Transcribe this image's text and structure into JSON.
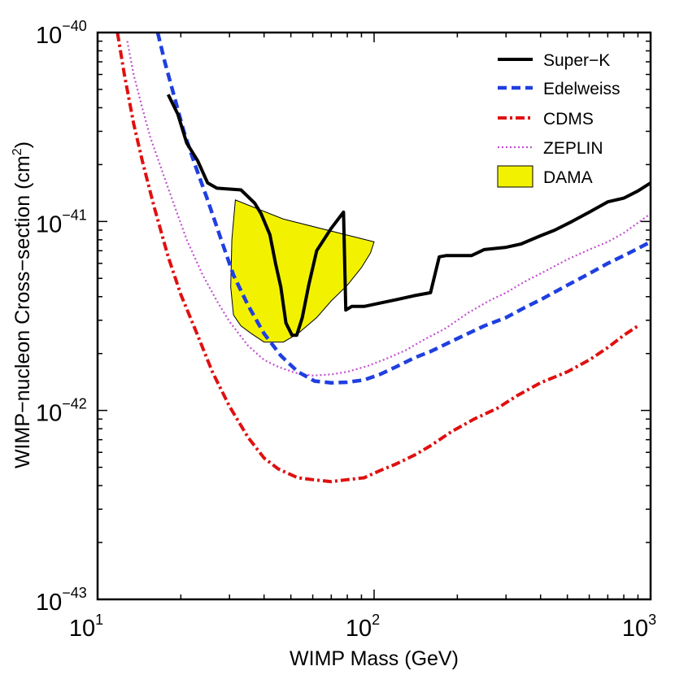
{
  "chart_data": {
    "type": "line",
    "title": "",
    "xlabel": "WIMP Mass (GeV)",
    "ylabel_main": "WIMP−nucleon  Cross−section (cm",
    "ylabel_sup": "2",
    "ylabel_close": ")",
    "xscale": "log",
    "yscale": "log",
    "xlim": [
      10,
      1000
    ],
    "ylim": [
      1e-43,
      1e-40
    ],
    "grid": false,
    "legend_position": "top-right",
    "x_ticks": [
      {
        "value": 10,
        "base": "10",
        "exp": "1"
      },
      {
        "value": 100,
        "base": "10",
        "exp": "2"
      },
      {
        "value": 1000,
        "base": "10",
        "exp": "3"
      }
    ],
    "y_ticks": [
      {
        "value": 1e-43,
        "base": "10",
        "exp": "−43"
      },
      {
        "value": 1e-42,
        "base": "10",
        "exp": "−42"
      },
      {
        "value": 1e-41,
        "base": "10",
        "exp": "−41"
      },
      {
        "value": 1e-40,
        "base": "10",
        "exp": "−40"
      }
    ],
    "series": [
      {
        "name": "Super−K",
        "kind": "line",
        "color": "#000000",
        "style": "solid",
        "x": [
          18,
          19.5,
          21,
          23,
          25,
          27,
          33,
          37,
          39,
          42,
          44,
          46,
          48,
          50.5,
          52.5,
          55,
          58,
          62,
          70,
          77.5,
          79,
          83,
          92,
          105,
          120,
          140,
          160,
          172,
          182,
          205,
          225,
          250,
          300,
          340,
          400,
          450,
          520,
          600,
          700,
          800,
          900,
          1000
        ],
        "y": [
          4.7e-41,
          3.7e-41,
          2.6e-41,
          2.1e-41,
          1.6e-41,
          1.5e-41,
          1.47e-41,
          1.25e-41,
          1.1e-41,
          8.5e-42,
          6e-42,
          4.5e-42,
          2.9e-42,
          2.5e-42,
          2.5e-42,
          3.1e-42,
          4.6e-42,
          7e-42,
          9.2e-42,
          1.12e-41,
          3.4e-42,
          3.55e-42,
          3.55e-42,
          3.7e-42,
          3.85e-42,
          4.05e-42,
          4.2e-42,
          6.5e-42,
          6.6e-42,
          6.6e-42,
          6.6e-42,
          7.1e-42,
          7.3e-42,
          7.6e-42,
          8.4e-42,
          9e-42,
          1e-41,
          1.12e-41,
          1.27e-41,
          1.33e-41,
          1.45e-41,
          1.6e-41
        ]
      },
      {
        "name": "Edelweiss",
        "kind": "line",
        "color": "#1f3fe0",
        "style": "dashed",
        "x": [
          16.5,
          17.5,
          19,
          20.5,
          22.5,
          25,
          28,
          31,
          35,
          40,
          46,
          53,
          61,
          70,
          80,
          92,
          105,
          120,
          140,
          160,
          200,
          250,
          300,
          350,
          400,
          500,
          600,
          700,
          800,
          900,
          1000
        ],
        "y": [
          1e-40,
          7e-41,
          4.5e-41,
          3e-41,
          2e-41,
          1.3e-41,
          8e-42,
          5.2e-42,
          3.6e-42,
          2.55e-42,
          1.95e-42,
          1.6e-42,
          1.43e-42,
          1.4e-42,
          1.41e-42,
          1.45e-42,
          1.55e-42,
          1.7e-42,
          1.9e-42,
          2.05e-42,
          2.4e-42,
          2.8e-42,
          3.1e-42,
          3.5e-42,
          3.85e-42,
          4.6e-42,
          5.3e-42,
          6e-42,
          6.6e-42,
          7.2e-42,
          7.8e-42
        ]
      },
      {
        "name": "CDMS",
        "kind": "line",
        "color": "#e01010",
        "style": "dashdot",
        "x": [
          11.8,
          12.5,
          13.5,
          14.5,
          16,
          18,
          20,
          23,
          26,
          30,
          35,
          40,
          45,
          53,
          60,
          70,
          80,
          92,
          105,
          120,
          140,
          160,
          190,
          230,
          280,
          330,
          400,
          500,
          600,
          700,
          800,
          900
        ],
        "y": [
          1e-40,
          6e-41,
          3.3e-41,
          2.1e-41,
          1.2e-41,
          6.5e-42,
          4.1e-42,
          2.5e-42,
          1.6e-42,
          1.05e-42,
          7.2e-43,
          5.6e-43,
          4.9e-43,
          4.4e-43,
          4.3e-43,
          4.2e-43,
          4.3e-43,
          4.4e-43,
          4.8e-43,
          5.2e-43,
          5.8e-43,
          6.5e-43,
          7.7e-43,
          9e-43,
          1.03e-42,
          1.2e-42,
          1.4e-42,
          1.6e-42,
          1.85e-42,
          2.15e-42,
          2.5e-42,
          2.8e-42
        ]
      },
      {
        "name": "ZEPLIN",
        "kind": "line",
        "color": "#c24fd0",
        "style": "dotted",
        "x": [
          12.8,
          13.5,
          14.5,
          15.5,
          17,
          19,
          21,
          24,
          27,
          30,
          35,
          40,
          45,
          52,
          60,
          70,
          80,
          95,
          110,
          130,
          150,
          180,
          220,
          260,
          300,
          350,
          400,
          500,
          600,
          700,
          800,
          1000
        ],
        "y": [
          9e-41,
          6e-41,
          4e-41,
          2.8e-41,
          1.9e-41,
          1.2e-41,
          8e-42,
          5.2e-42,
          3.8e-42,
          2.95e-42,
          2.2e-42,
          1.85e-42,
          1.7e-42,
          1.58e-42,
          1.53e-42,
          1.55e-42,
          1.6e-42,
          1.72e-42,
          1.87e-42,
          2.08e-42,
          2.35e-42,
          2.7e-42,
          3.3e-42,
          3.8e-42,
          4.2e-42,
          4.8e-42,
          5.3e-42,
          6.3e-42,
          7.1e-42,
          7.8e-42,
          8.7e-42,
          1.1e-41
        ]
      }
    ],
    "regions": [
      {
        "name": "DAMA",
        "kind": "region",
        "fill": "#f2f200",
        "stroke": "#000000",
        "x": [
          31.5,
          47,
          100,
          97,
          90,
          80,
          70,
          62,
          53,
          47,
          40,
          36,
          33,
          31,
          30.3,
          30.6,
          31.5
        ],
        "y": [
          1.3e-41,
          1.03e-41,
          7.8e-42,
          6.8e-42,
          5.7e-42,
          4.6e-42,
          3.8e-42,
          3.1e-42,
          2.55e-42,
          2.3e-42,
          2.3e-42,
          2.55e-42,
          2.8e-42,
          3.2e-42,
          4.5e-42,
          8e-42,
          1.3e-41
        ]
      }
    ],
    "legend": [
      {
        "label": "Super−K",
        "kind": "line",
        "color": "#000000",
        "style": "solid"
      },
      {
        "label": "Edelweiss",
        "kind": "line",
        "color": "#1f3fe0",
        "style": "dashed"
      },
      {
        "label": "CDMS",
        "kind": "line",
        "color": "#e01010",
        "style": "dashdot"
      },
      {
        "label": "ZEPLIN",
        "kind": "line",
        "color": "#c24fd0",
        "style": "dotted"
      },
      {
        "label": "DAMA",
        "kind": "patch",
        "color": "#f2f200",
        "style": "fill"
      }
    ]
  }
}
